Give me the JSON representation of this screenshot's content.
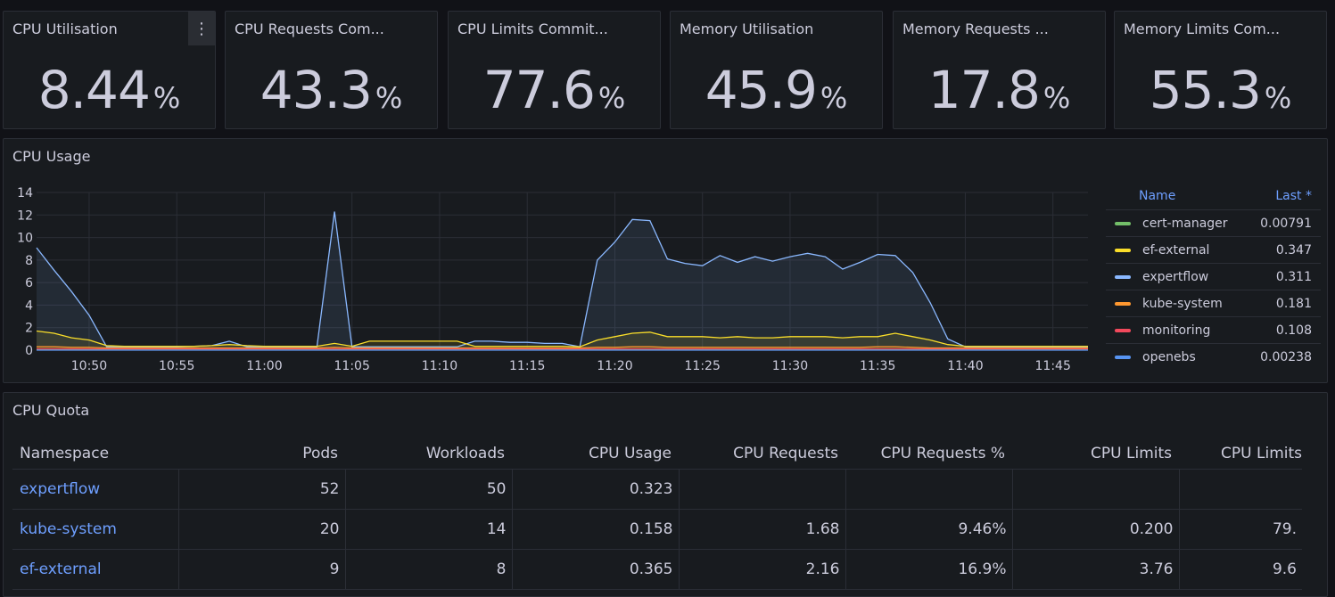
{
  "stats": [
    {
      "title": "CPU Utilisation",
      "value": "8.44",
      "unit": "%"
    },
    {
      "title": "CPU Requests Com...",
      "value": "43.3",
      "unit": "%"
    },
    {
      "title": "CPU Limits Commit...",
      "value": "77.6",
      "unit": "%"
    },
    {
      "title": "Memory Utilisation",
      "value": "45.9",
      "unit": "%"
    },
    {
      "title": "Memory Requests ...",
      "value": "17.8",
      "unit": "%"
    },
    {
      "title": "Memory Limits Com...",
      "value": "55.3",
      "unit": "%"
    }
  ],
  "menu_icon": "kebab-menu-icon",
  "cpu_usage": {
    "title": "CPU Usage",
    "legend": {
      "name_header": "Name",
      "last_header": "Last *",
      "items": [
        {
          "name": "cert-manager",
          "last": "0.00791",
          "color": "#73bf69"
        },
        {
          "name": "ef-external",
          "last": "0.347",
          "color": "#fade2a"
        },
        {
          "name": "expertflow",
          "last": "0.311",
          "color": "#8ab8ff"
        },
        {
          "name": "kube-system",
          "last": "0.181",
          "color": "#ff9830"
        },
        {
          "name": "monitoring",
          "last": "0.108",
          "color": "#f2495c"
        },
        {
          "name": "openebs",
          "last": "0.00238",
          "color": "#5794f2"
        }
      ]
    }
  },
  "chart_data": {
    "type": "line",
    "title": "CPU Usage",
    "xlabel": "",
    "ylabel": "",
    "ylim": [
      0,
      14
    ],
    "yticks": [
      "0",
      "2",
      "4",
      "6",
      "8",
      "10",
      "12",
      "14"
    ],
    "xticks": [
      "10:50",
      "10:55",
      "11:00",
      "11:05",
      "11:10",
      "11:15",
      "11:20",
      "11:25",
      "11:30",
      "11:35",
      "11:40",
      "11:45"
    ],
    "x": [
      "10:47",
      "10:48",
      "10:49",
      "10:50",
      "10:51",
      "10:52",
      "10:53",
      "10:54",
      "10:55",
      "10:56",
      "10:57",
      "10:58",
      "10:59",
      "11:00",
      "11:01",
      "11:02",
      "11:03",
      "11:04",
      "11:05",
      "11:06",
      "11:07",
      "11:08",
      "11:09",
      "11:10",
      "11:11",
      "11:12",
      "11:13",
      "11:14",
      "11:15",
      "11:16",
      "11:17",
      "11:18",
      "11:19",
      "11:20",
      "11:21",
      "11:22",
      "11:23",
      "11:24",
      "11:25",
      "11:26",
      "11:27",
      "11:28",
      "11:29",
      "11:30",
      "11:31",
      "11:32",
      "11:33",
      "11:34",
      "11:35",
      "11:36",
      "11:37",
      "11:38",
      "11:39",
      "11:40",
      "11:41",
      "11:42",
      "11:43",
      "11:44",
      "11:45",
      "11:46",
      "11:47"
    ],
    "series": [
      {
        "name": "expertflow",
        "color": "#8ab8ff",
        "values": [
          9.1,
          7.1,
          5.2,
          3.1,
          0.3,
          0.3,
          0.3,
          0.3,
          0.3,
          0.35,
          0.4,
          0.8,
          0.3,
          0.3,
          0.3,
          0.3,
          0.3,
          12.3,
          0.3,
          0.3,
          0.3,
          0.3,
          0.3,
          0.3,
          0.3,
          0.8,
          0.8,
          0.7,
          0.7,
          0.6,
          0.6,
          0.3,
          8.0,
          9.6,
          11.6,
          11.5,
          8.1,
          7.7,
          7.5,
          8.4,
          7.8,
          8.3,
          7.9,
          8.3,
          8.6,
          8.3,
          7.2,
          7.8,
          8.5,
          8.4,
          6.9,
          4.2,
          1.0,
          0.3,
          0.3,
          0.3,
          0.3,
          0.3,
          0.3,
          0.3,
          0.3
        ]
      },
      {
        "name": "ef-external",
        "color": "#fade2a",
        "values": [
          1.7,
          1.5,
          1.1,
          0.9,
          0.4,
          0.35,
          0.35,
          0.35,
          0.35,
          0.35,
          0.4,
          0.5,
          0.4,
          0.35,
          0.35,
          0.35,
          0.35,
          0.6,
          0.35,
          0.8,
          0.8,
          0.8,
          0.8,
          0.8,
          0.8,
          0.35,
          0.35,
          0.35,
          0.35,
          0.35,
          0.35,
          0.3,
          0.9,
          1.2,
          1.5,
          1.6,
          1.2,
          1.2,
          1.2,
          1.1,
          1.2,
          1.1,
          1.1,
          1.2,
          1.2,
          1.2,
          1.1,
          1.2,
          1.2,
          1.5,
          1.2,
          0.9,
          0.5,
          0.35,
          0.35,
          0.35,
          0.35,
          0.35,
          0.35,
          0.35,
          0.35
        ]
      },
      {
        "name": "kube-system",
        "color": "#ff9830",
        "values": [
          0.3,
          0.3,
          0.25,
          0.25,
          0.2,
          0.2,
          0.2,
          0.2,
          0.2,
          0.2,
          0.2,
          0.2,
          0.2,
          0.2,
          0.2,
          0.2,
          0.2,
          0.25,
          0.2,
          0.2,
          0.2,
          0.2,
          0.2,
          0.2,
          0.2,
          0.2,
          0.2,
          0.2,
          0.2,
          0.2,
          0.2,
          0.2,
          0.25,
          0.25,
          0.3,
          0.3,
          0.25,
          0.25,
          0.25,
          0.25,
          0.25,
          0.25,
          0.25,
          0.25,
          0.25,
          0.25,
          0.25,
          0.25,
          0.3,
          0.3,
          0.25,
          0.2,
          0.2,
          0.2,
          0.2,
          0.2,
          0.2,
          0.2,
          0.2,
          0.2,
          0.2
        ]
      },
      {
        "name": "monitoring",
        "color": "#f2495c",
        "values": [
          0.1,
          0.1,
          0.1,
          0.1,
          0.1,
          0.1,
          0.1,
          0.1,
          0.1,
          0.1,
          0.1,
          0.1,
          0.1,
          0.1,
          0.1,
          0.1,
          0.1,
          0.1,
          0.1,
          0.1,
          0.1,
          0.1,
          0.1,
          0.1,
          0.1,
          0.1,
          0.1,
          0.1,
          0.1,
          0.1,
          0.1,
          0.1,
          0.1,
          0.1,
          0.1,
          0.1,
          0.1,
          0.1,
          0.1,
          0.1,
          0.1,
          0.1,
          0.1,
          0.1,
          0.1,
          0.1,
          0.1,
          0.1,
          0.1,
          0.1,
          0.1,
          0.1,
          0.1,
          0.1,
          0.1,
          0.1,
          0.1,
          0.1,
          0.1,
          0.1,
          0.1
        ]
      },
      {
        "name": "cert-manager",
        "color": "#73bf69",
        "values": [
          0.01,
          0.01,
          0.01,
          0.01,
          0.01,
          0.01,
          0.01,
          0.01,
          0.01,
          0.01,
          0.01,
          0.01,
          0.01,
          0.01,
          0.01,
          0.01,
          0.01,
          0.01,
          0.01,
          0.01,
          0.01,
          0.01,
          0.01,
          0.01,
          0.01,
          0.01,
          0.01,
          0.01,
          0.01,
          0.01,
          0.01,
          0.01,
          0.01,
          0.01,
          0.01,
          0.01,
          0.01,
          0.01,
          0.01,
          0.01,
          0.01,
          0.01,
          0.01,
          0.01,
          0.01,
          0.01,
          0.01,
          0.01,
          0.01,
          0.01,
          0.01,
          0.01,
          0.01,
          0.01,
          0.01,
          0.01,
          0.01,
          0.01,
          0.01,
          0.01,
          0.01
        ]
      },
      {
        "name": "openebs",
        "color": "#5794f2",
        "values": [
          0.003,
          0.003,
          0.003,
          0.003,
          0.003,
          0.003,
          0.003,
          0.003,
          0.003,
          0.003,
          0.003,
          0.003,
          0.003,
          0.003,
          0.003,
          0.003,
          0.003,
          0.003,
          0.003,
          0.003,
          0.003,
          0.003,
          0.003,
          0.003,
          0.003,
          0.003,
          0.003,
          0.003,
          0.003,
          0.003,
          0.003,
          0.003,
          0.003,
          0.003,
          0.003,
          0.003,
          0.003,
          0.003,
          0.003,
          0.003,
          0.003,
          0.003,
          0.003,
          0.003,
          0.003,
          0.003,
          0.003,
          0.003,
          0.003,
          0.003,
          0.003,
          0.003,
          0.003,
          0.003,
          0.003,
          0.003,
          0.003,
          0.003,
          0.003,
          0.003,
          0.003
        ]
      }
    ],
    "grid": true,
    "legend": "right"
  },
  "cpu_quota": {
    "title": "CPU Quota",
    "headers": [
      "Namespace",
      "Pods",
      "Workloads",
      "CPU Usage",
      "CPU Requests",
      "CPU Requests %",
      "CPU Limits",
      "CPU Limits"
    ],
    "rows": [
      [
        "expertflow",
        "52",
        "50",
        "0.323",
        "",
        "",
        "",
        ""
      ],
      [
        "kube-system",
        "20",
        "14",
        "0.158",
        "1.68",
        "9.46%",
        "0.200",
        "79."
      ],
      [
        "ef-external",
        "9",
        "8",
        "0.365",
        "2.16",
        "16.9%",
        "3.76",
        "9.6"
      ]
    ]
  }
}
